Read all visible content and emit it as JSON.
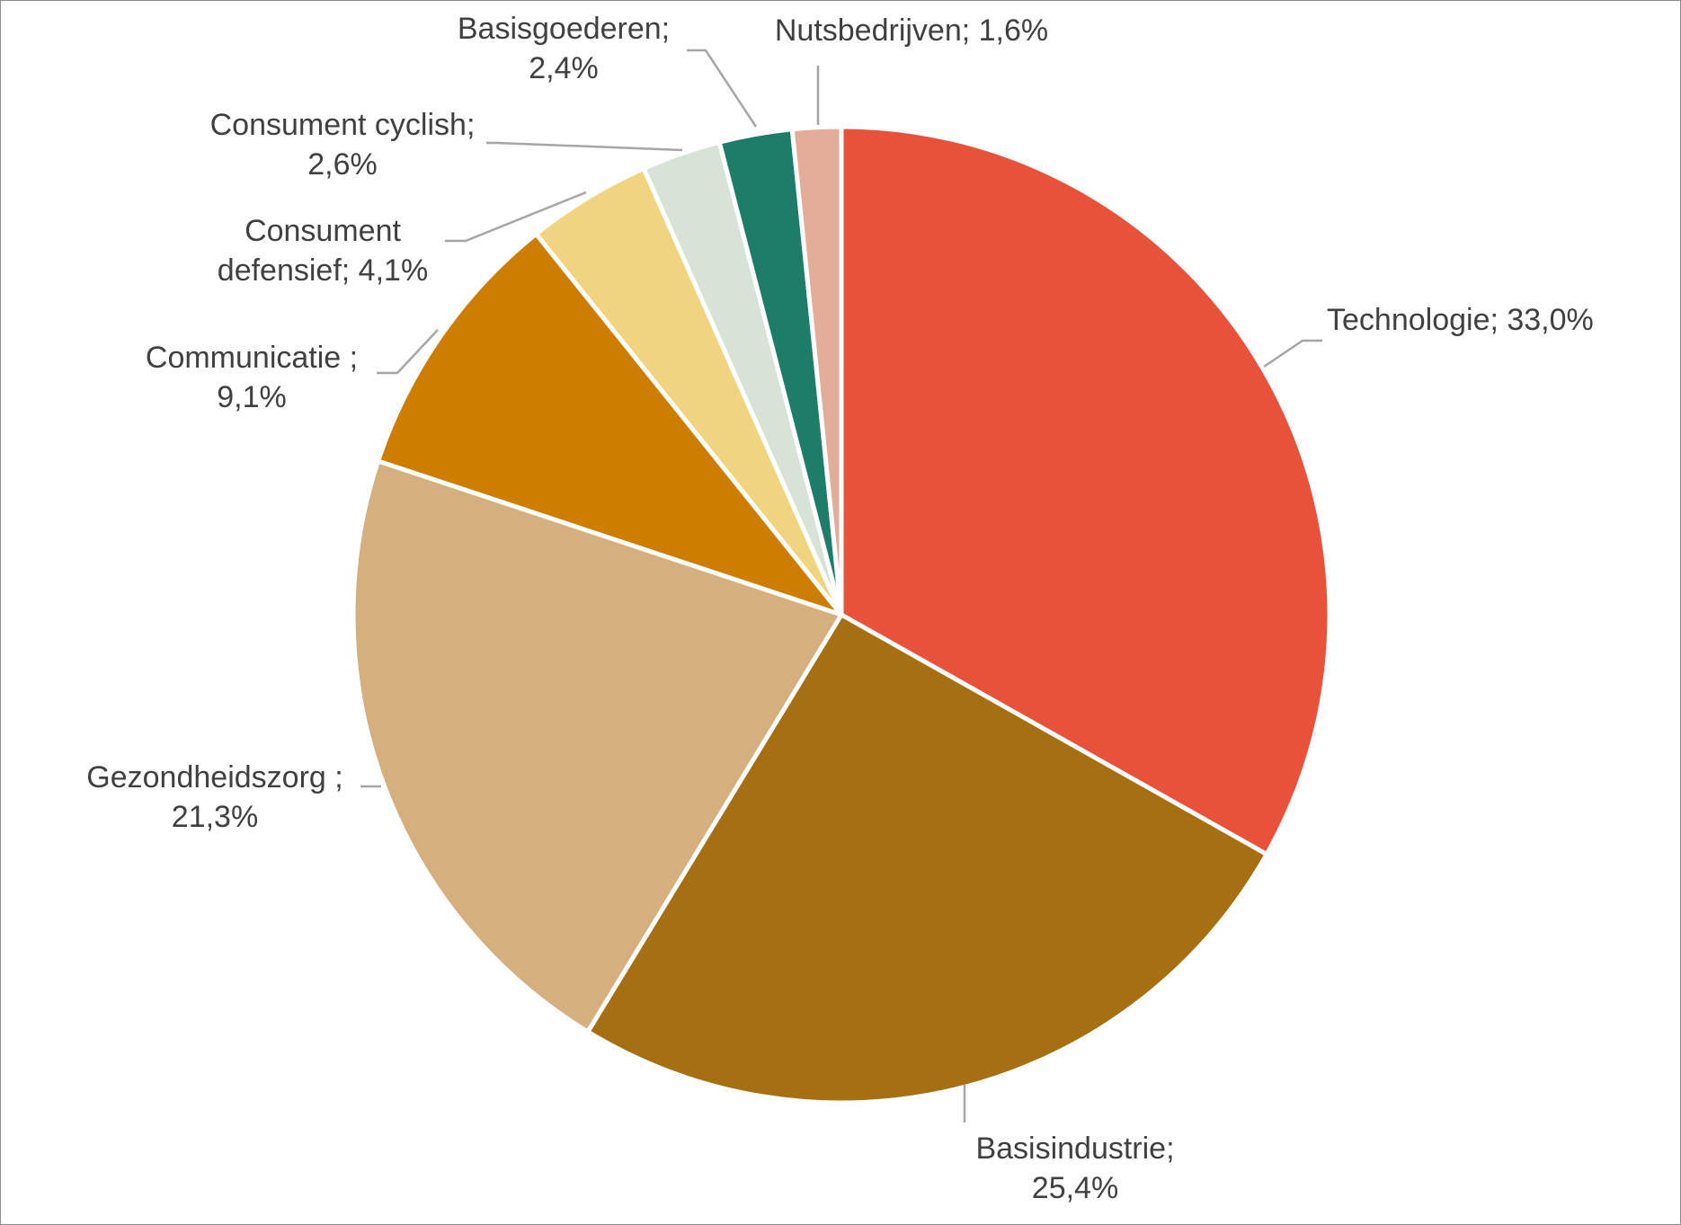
{
  "chart_data": {
    "type": "pie",
    "title": "",
    "start_angle_deg": 0,
    "direction": "clockwise",
    "legend": "none",
    "slices": [
      {
        "label_lines": [
          "Technologie; 33,0%"
        ],
        "value": 33.0,
        "color": "#E8523A"
      },
      {
        "label_lines": [
          "Basisindustrie;",
          "25,4%"
        ],
        "value": 25.4,
        "color": "#A56F12"
      },
      {
        "label_lines": [
          "Gezondheidszorg ;",
          "21,3%"
        ],
        "value": 21.3,
        "color": "#D5AF7E"
      },
      {
        "label_lines": [
          "Communicatie ;",
          "9,1%"
        ],
        "value": 9.1,
        "color": "#CD7E00"
      },
      {
        "label_lines": [
          "Consument",
          "defensief; 4,1%"
        ],
        "value": 4.1,
        "color": "#F1D47F"
      },
      {
        "label_lines": [
          "Consument cyclish;",
          "2,6%"
        ],
        "value": 2.6,
        "color": "#D7E3D6"
      },
      {
        "label_lines": [
          "Basisgoederen;",
          "2,4%"
        ],
        "value": 2.4,
        "color": "#1E7D68"
      },
      {
        "label_lines": [
          "Nutsbedrijven; 1,6%"
        ],
        "value": 1.6,
        "color": "#E3AE99"
      }
    ]
  }
}
